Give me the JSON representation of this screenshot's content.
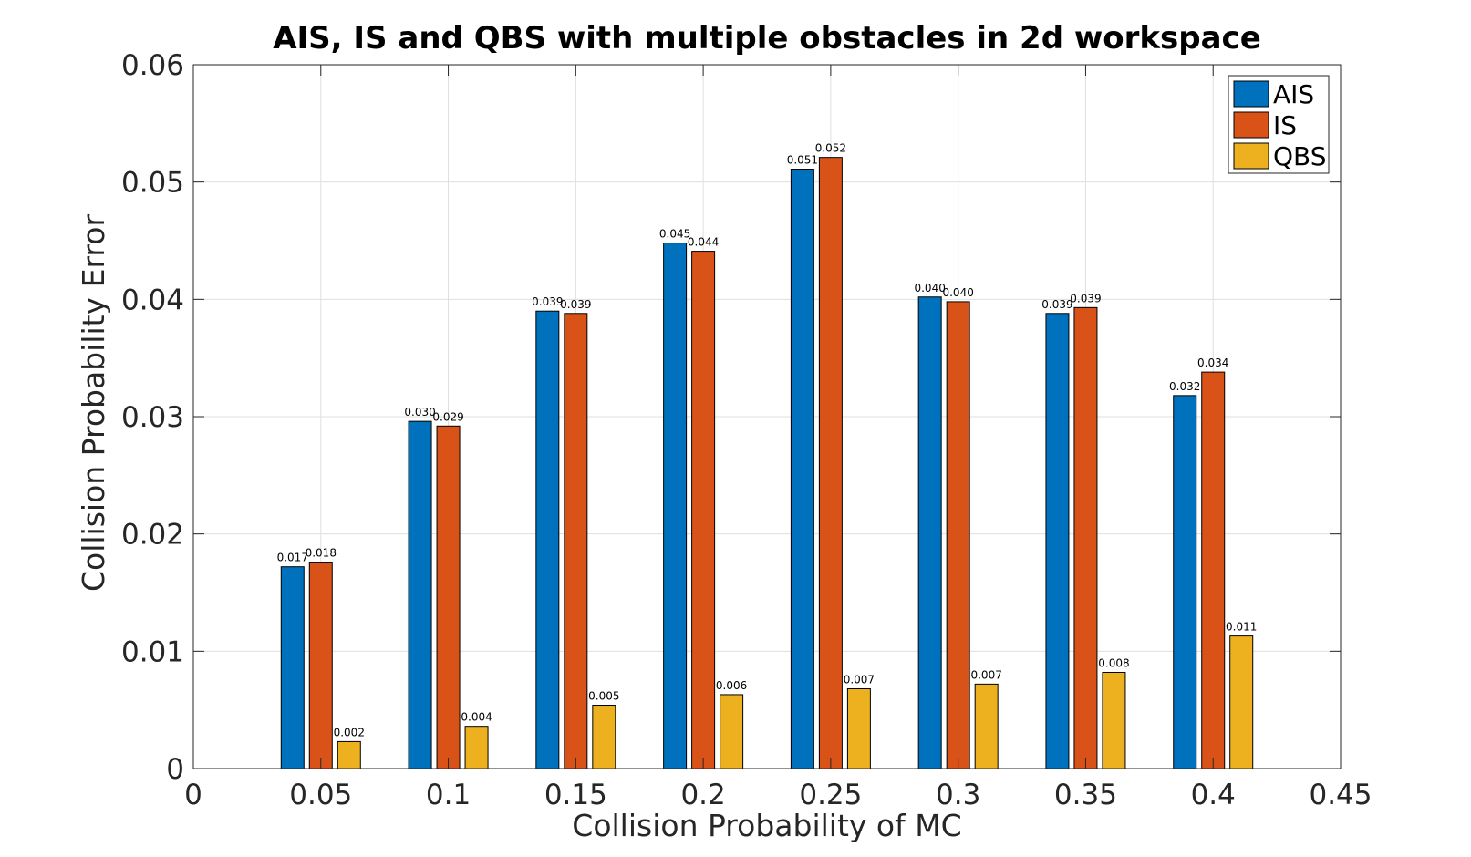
{
  "chart_data": {
    "type": "bar",
    "title": "AIS, IS and QBS with multiple obstacles in 2d workspace",
    "xlabel": "Collision Probability of MC",
    "ylabel": "Collision Probability Error",
    "xlim": [
      0,
      0.45
    ],
    "ylim": [
      0,
      0.06
    ],
    "x_ticks": [
      "0",
      "0.05",
      "0.1",
      "0.15",
      "0.2",
      "0.25",
      "0.3",
      "0.35",
      "0.4",
      "0.45"
    ],
    "y_ticks": [
      "0",
      "0.01",
      "0.02",
      "0.03",
      "0.04",
      "0.05",
      "0.06"
    ],
    "grid": true,
    "legend_position": "top-right",
    "categories": [
      0.05,
      0.1,
      0.15,
      0.2,
      0.25,
      0.3,
      0.35,
      0.4
    ],
    "series": [
      {
        "name": "AIS",
        "color": "#0072BD",
        "values": [
          0.0172,
          0.0296,
          0.039,
          0.0448,
          0.0511,
          0.0402,
          0.0388,
          0.0318
        ],
        "labels": [
          "0.017",
          "0.030",
          "0.039",
          "0.045",
          "0.051",
          "0.040",
          "0.039",
          "0.032"
        ]
      },
      {
        "name": "IS",
        "color": "#D95319",
        "values": [
          0.0176,
          0.0292,
          0.0388,
          0.0441,
          0.0521,
          0.0398,
          0.0393,
          0.0338
        ],
        "labels": [
          "0.018",
          "0.029",
          "0.039",
          "0.044",
          "0.052",
          "0.040",
          "0.039",
          "0.034"
        ]
      },
      {
        "name": "QBS",
        "color": "#EDB120",
        "values": [
          0.0023,
          0.0036,
          0.0054,
          0.0063,
          0.0068,
          0.0072,
          0.0082,
          0.0113
        ],
        "labels": [
          "0.002",
          "0.004",
          "0.005",
          "0.006",
          "0.007",
          "0.007",
          "0.008",
          "0.011"
        ]
      }
    ]
  }
}
